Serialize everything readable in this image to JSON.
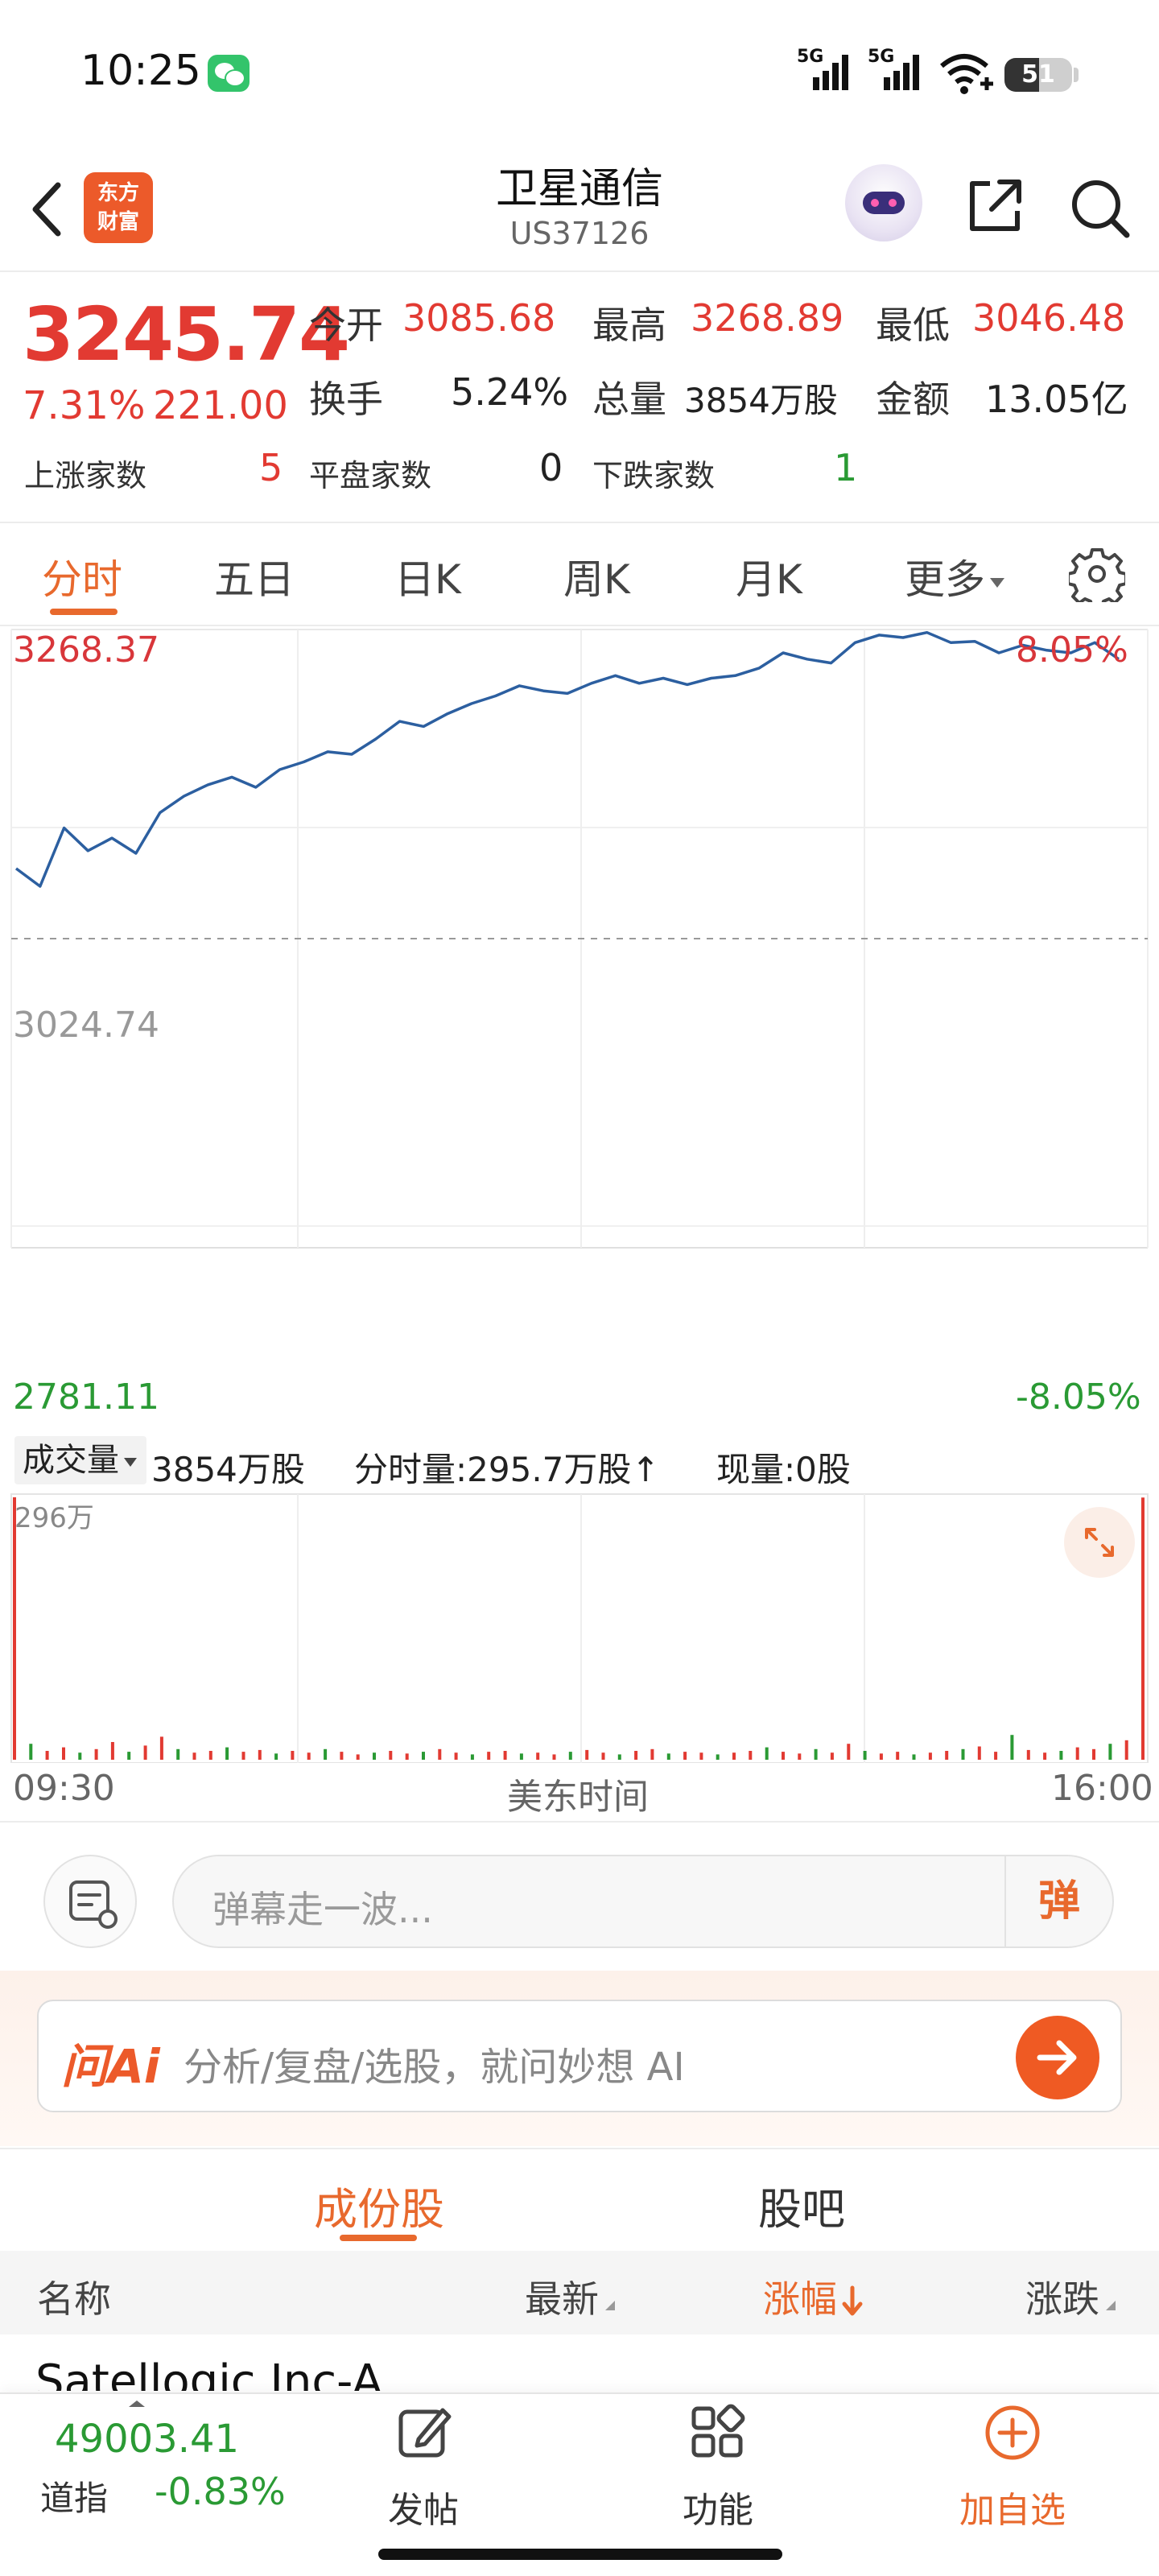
{
  "status_bar": {
    "time": "10:25",
    "network_1": "5G",
    "network_2": "5G",
    "battery": "51"
  },
  "header": {
    "logo_line1": "东方",
    "logo_line2": "财富",
    "title": "卫星通信",
    "code": "US37126"
  },
  "quote": {
    "price": "3245.74",
    "change_pct": "7.31%",
    "change": "221.00",
    "open_label": "今开",
    "open": "3085.68",
    "high_label": "最高",
    "high": "3268.89",
    "low_label": "最低",
    "low": "3046.48",
    "turnover_label": "换手",
    "turnover": "5.24%",
    "volume_label": "总量",
    "volume": "3854万股",
    "amount_label": "金额",
    "amount": "13.05亿",
    "up_label": "上涨家数",
    "up": "5",
    "flat_label": "平盘家数",
    "flat": "0",
    "down_label": "下跌家数",
    "down": "1"
  },
  "period_tabs": [
    "分时",
    "五日",
    "日K",
    "周K",
    "月K",
    "更多"
  ],
  "chart_labels": {
    "top_left": "3268.37",
    "top_right": "8.05%",
    "mid_left": "3024.74",
    "bottom_left": "2781.11",
    "bottom_right": "-8.05%",
    "vol_tab": "成交量",
    "vol_total": "3854万股",
    "vol_time": "分时量:295.7万股↑",
    "vol_now": "现量:0股",
    "vol_max": "296万",
    "time_start": "09:30",
    "time_zone": "美东时间",
    "time_end": "16:00"
  },
  "chart_data": [
    {
      "type": "line",
      "title": "",
      "xlabel": "美东时间",
      "ylabel": "",
      "x_range": [
        "09:30",
        "16:00"
      ],
      "ylim": [
        2781.11,
        3268.37
      ],
      "reference_line": 3024.74,
      "y_right_labels": [
        "8.05%",
        "-8.05%"
      ],
      "series": [
        {
          "values": [
            3080,
            3066,
            3112,
            3094,
            3104,
            3092,
            3124,
            3137,
            3146,
            3152,
            3144,
            3158,
            3164,
            3172,
            3170,
            3182,
            3196,
            3192,
            3202,
            3210,
            3216,
            3224,
            3220,
            3218,
            3226,
            3232,
            3226,
            3230,
            3225,
            3230,
            3232,
            3238,
            3250,
            3245,
            3242,
            3258,
            3264,
            3262,
            3266,
            3258,
            3259,
            3250,
            3256,
            3252,
            3250,
            3258,
            3245
          ]
        }
      ]
    },
    {
      "type": "bar",
      "title": "成交量",
      "ylabel": "",
      "ylim": [
        0,
        296
      ],
      "unit": "万股",
      "note": "intraday volume bars, mostly small with spikes at open and close",
      "series": [
        {
          "values": [
            296,
            18,
            10,
            14,
            8,
            12,
            20,
            9,
            16,
            26,
            12,
            8,
            10,
            14,
            9,
            11,
            7,
            10,
            8,
            12,
            9,
            6,
            8,
            10,
            7,
            9,
            12,
            8,
            6,
            9,
            10,
            7,
            8,
            6,
            9,
            11,
            8,
            6,
            10,
            12,
            7,
            9,
            8,
            6,
            8,
            10,
            14,
            9,
            7,
            12,
            8,
            18,
            10,
            7,
            9,
            6,
            8,
            10,
            12,
            15,
            9,
            28,
            11,
            8,
            10,
            14,
            12,
            18,
            22,
            295.7
          ]
        }
      ]
    }
  ],
  "danmaku": {
    "placeholder": "弹幕走一波...",
    "button": "弹"
  },
  "ai_bar": {
    "logo": "问Ai",
    "placeholder": "分析/复盘/选股，就问妙想 AI"
  },
  "sub_tabs": [
    "成份股",
    "股吧"
  ],
  "table": {
    "col_name": "名称",
    "col_last": "最新",
    "col_pct": "涨幅",
    "col_chg": "涨跌",
    "row_peek_name": "Satellogic Inc-A"
  },
  "bottom_nav": {
    "index_value": "49003.41",
    "index_name": "道指",
    "index_pct": "-0.83%",
    "post": "发帖",
    "function": "功能",
    "add_watch": "加自选"
  },
  "colors": {
    "accent": "#e8692d",
    "up": "#e23a32",
    "down": "#2a9a34",
    "line": "#2c5fa0"
  }
}
